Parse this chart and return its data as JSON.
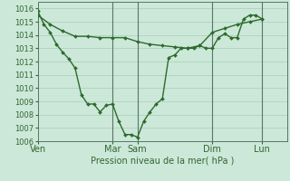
{
  "bg_color": "#cce8d8",
  "grid_color": "#aaccbb",
  "line_color": "#2d6a2d",
  "marker_color": "#2d6a2d",
  "xlabel_text": "Pression niveau de la mer( hPa )",
  "ylim": [
    1006,
    1016.5
  ],
  "yticks": [
    1006,
    1007,
    1008,
    1009,
    1010,
    1011,
    1012,
    1013,
    1014,
    1015,
    1016
  ],
  "xlim": [
    0,
    240
  ],
  "xtick_labels": [
    "Ven",
    "Mar",
    "Sam",
    "Dim",
    "Lun"
  ],
  "xtick_positions": [
    0,
    72,
    96,
    168,
    216
  ],
  "vline_positions": [
    72,
    96,
    168,
    216
  ],
  "series1": {
    "x": [
      0,
      6,
      12,
      18,
      24,
      30,
      36,
      42,
      48,
      54,
      60,
      66,
      72,
      78,
      84,
      90,
      96,
      102,
      108,
      114,
      120,
      126,
      132,
      138,
      144,
      150,
      156,
      162,
      168,
      174,
      180,
      186,
      192,
      198,
      204,
      210,
      216
    ],
    "y": [
      1015.8,
      1014.8,
      1014.2,
      1013.3,
      1012.7,
      1012.2,
      1011.5,
      1009.5,
      1008.8,
      1008.8,
      1008.2,
      1008.7,
      1008.8,
      1007.5,
      1006.5,
      1006.5,
      1006.3,
      1007.5,
      1008.2,
      1008.8,
      1009.2,
      1012.3,
      1012.5,
      1013.0,
      1013.0,
      1013.0,
      1013.2,
      1013.0,
      1013.0,
      1013.8,
      1014.1,
      1013.8,
      1013.8,
      1015.2,
      1015.5,
      1015.5,
      1015.2
    ]
  },
  "series2": {
    "x": [
      0,
      12,
      24,
      36,
      48,
      60,
      72,
      84,
      96,
      108,
      120,
      132,
      144,
      156,
      168,
      180,
      192,
      204,
      216
    ],
    "y": [
      1015.5,
      1014.8,
      1014.3,
      1013.9,
      1013.9,
      1013.8,
      1013.8,
      1013.8,
      1013.5,
      1013.3,
      1013.2,
      1013.1,
      1013.0,
      1013.2,
      1014.2,
      1014.5,
      1014.8,
      1015.0,
      1015.2
    ]
  },
  "font_size": 7,
  "tick_font_size": 6,
  "linewidth": 1.0,
  "markersize": 2.0
}
